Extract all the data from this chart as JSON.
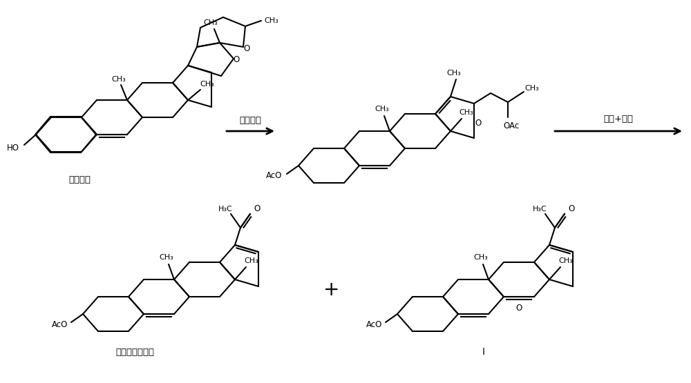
{
  "background_color": "#ffffff",
  "line_color": "#000000",
  "figure_width": 10.0,
  "figure_height": 5.55,
  "dpi": 100,
  "arrow1_label": "开环酰化",
  "arrow2_label": "氧化+水解",
  "label1": "薯蓣皂素",
  "label2": "双烯醇酮醋酸酯",
  "label3": "I",
  "font_zh": "SimSun"
}
